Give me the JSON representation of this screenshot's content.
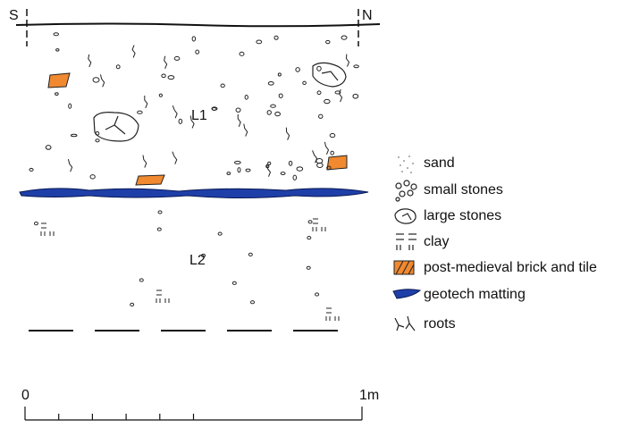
{
  "orientation": {
    "left": "S",
    "right": "N"
  },
  "layers": [
    {
      "label": "L1"
    },
    {
      "label": "L2"
    }
  ],
  "legend": [
    {
      "label": "sand"
    },
    {
      "label": "small stones"
    },
    {
      "label": "large stones"
    },
    {
      "label": "clay"
    },
    {
      "label": "post-medieval brick and tile"
    },
    {
      "label": "geotech matting"
    },
    {
      "label": "roots"
    }
  ],
  "scale": {
    "start": "0",
    "end": "1m"
  }
}
